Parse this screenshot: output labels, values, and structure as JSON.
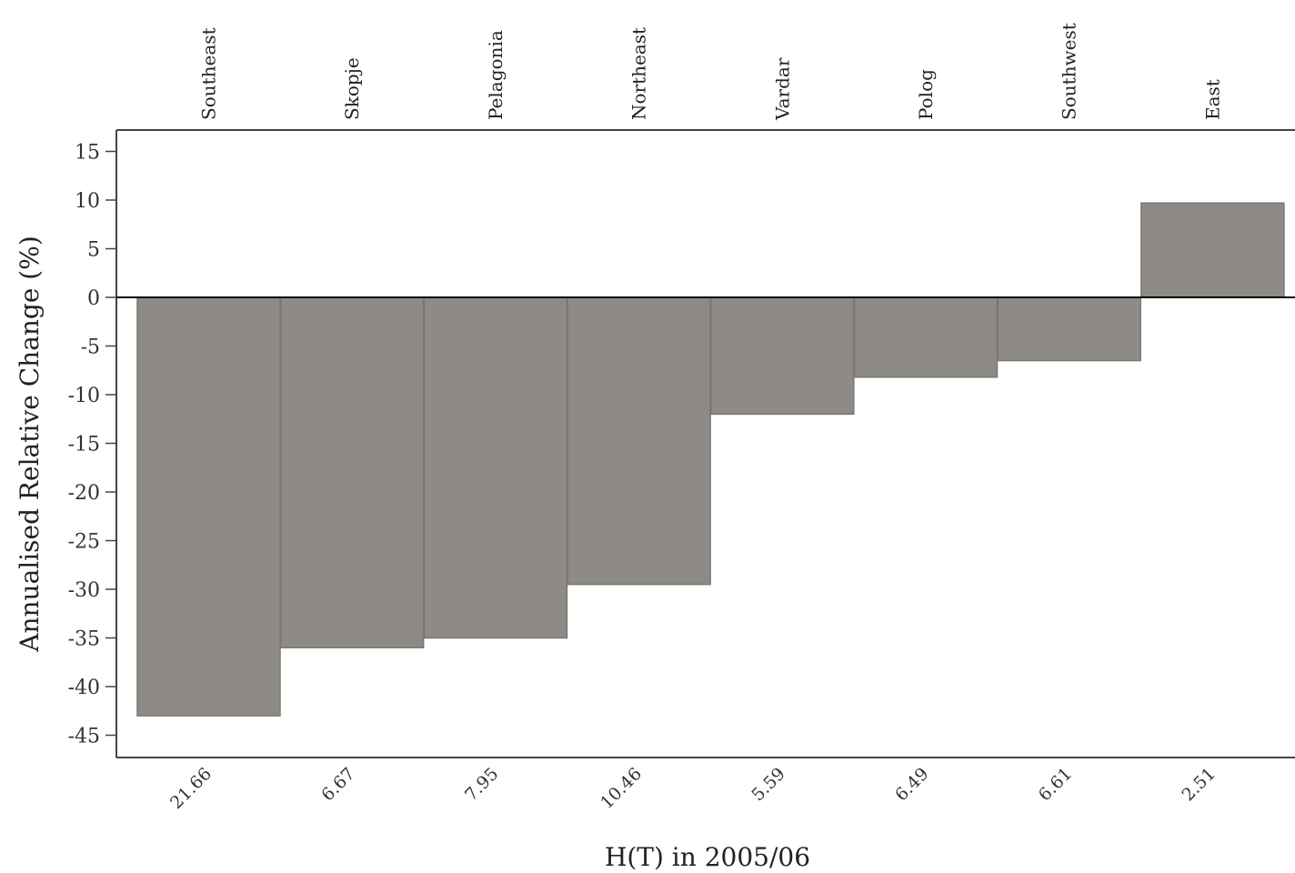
{
  "chart_data": {
    "type": "bar",
    "categories": [
      "Southeast",
      "Skopje",
      "Pelagonia",
      "Northeast",
      "Vardar",
      "Polog",
      "Southwest",
      "East"
    ],
    "bottom_labels": [
      "21.66",
      "6.67",
      "7.95",
      "10.46",
      "5.59",
      "6.49",
      "6.61",
      "2.51"
    ],
    "values": [
      -43,
      -36,
      -35,
      -29.5,
      -12,
      -8.2,
      -6.5,
      9.7
    ],
    "xlabel": "H(T) in 2005/06",
    "ylabel": "Annualised Relative Change (%)",
    "ylim": [
      -47,
      17
    ],
    "yticks": [
      15,
      10,
      5,
      0,
      -5,
      -10,
      -15,
      -20,
      -25,
      -30,
      -35,
      -40,
      -45
    ],
    "grid": false,
    "bar_color": "#8e8a85",
    "bar_edge_color": "#7a7671",
    "zero_line_color": "#000000"
  }
}
